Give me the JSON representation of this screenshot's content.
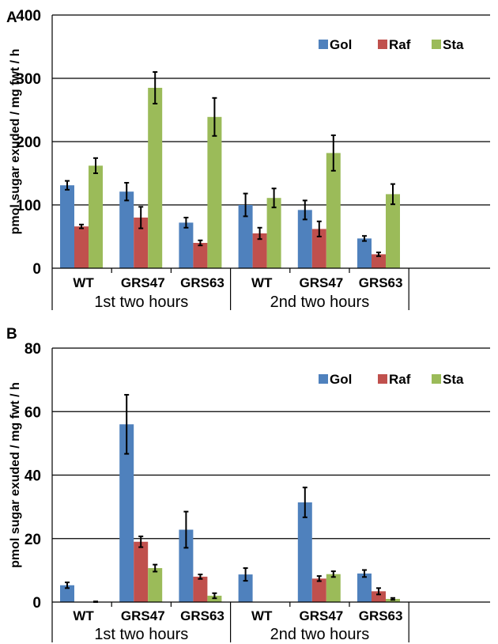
{
  "colors": {
    "Gol": "#4f81bd",
    "Raf": "#c0504d",
    "Sta": "#9bbb59"
  },
  "chart_data": [
    {
      "type": "bar",
      "panel": "A",
      "ylabel": "pmol sugar exuded / mg fwt / h",
      "ylim": [
        0,
        400
      ],
      "yticks": [
        "0",
        "100",
        "200",
        "300",
        "400"
      ],
      "yticks_values": [
        0,
        100,
        200,
        300,
        400
      ],
      "grid": true,
      "legend": "top-right",
      "categories": [
        "WT",
        "GRS47",
        "GRS63",
        "WT",
        "GRS47",
        "GRS63"
      ],
      "groups": [
        "1st two hours",
        "2nd two hours"
      ],
      "series": [
        {
          "name": "Gol",
          "values": [
            131,
            121,
            72,
            100,
            92,
            47
          ],
          "errors": [
            7,
            14,
            8,
            18,
            15,
            4
          ]
        },
        {
          "name": "Raf",
          "values": [
            66,
            80,
            40,
            55,
            62,
            22
          ],
          "errors": [
            3,
            17,
            4,
            9,
            12,
            3
          ]
        },
        {
          "name": "Sta",
          "values": [
            162,
            285,
            239,
            111,
            182,
            117
          ],
          "errors": [
            12,
            25,
            30,
            15,
            28,
            16
          ]
        }
      ]
    },
    {
      "type": "bar",
      "panel": "B",
      "ylabel": "pmol sugar exuded / mg fwt / h",
      "ylim": [
        0,
        80
      ],
      "yticks": [
        "0",
        "20",
        "40",
        "60",
        "80"
      ],
      "yticks_values": [
        0,
        20,
        40,
        60,
        80
      ],
      "grid": true,
      "legend": "top-right",
      "categories": [
        "WT",
        "GRS47",
        "GRS63",
        "WT",
        "GRS47",
        "GRS63"
      ],
      "groups": [
        "1st two hours",
        "2nd two hours"
      ],
      "series": [
        {
          "name": "Gol",
          "values": [
            5.3,
            56,
            22.8,
            8.7,
            31.4,
            9
          ],
          "errors": [
            0.9,
            9.3,
            5.7,
            2,
            4.7,
            1.1
          ]
        },
        {
          "name": "Raf",
          "values": [
            0,
            19,
            8,
            0,
            7.4,
            3.4
          ],
          "errors": [
            0,
            1.7,
            0.7,
            0,
            0.8,
            1
          ]
        },
        {
          "name": "Sta",
          "values": [
            0.1,
            10.7,
            2,
            0,
            8.8,
            1
          ],
          "errors": [
            0.1,
            1.1,
            0.8,
            0,
            0.9,
            0.3
          ]
        }
      ]
    }
  ]
}
